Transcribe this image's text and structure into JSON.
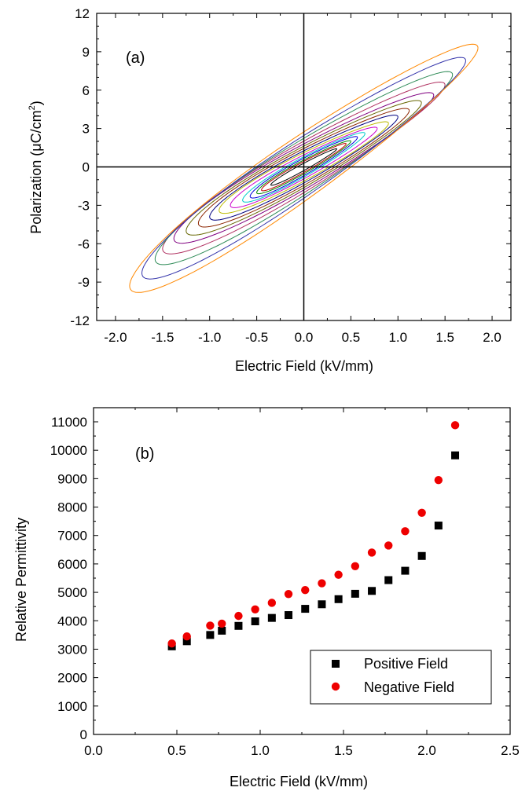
{
  "chart_data": [
    {
      "type": "line",
      "panel_label": "(a)",
      "xlabel": "Electric Field (kV/mm)",
      "ylabel_main": "Polarization (",
      "ylabel_mu": "μ",
      "ylabel_unit": "C/cm",
      "ylabel_sup": "2",
      "ylabel_close": ")",
      "xlim": [
        -2.2,
        2.2
      ],
      "ylim": [
        -12,
        12
      ],
      "xticks": [
        "-2.0",
        "-1.5",
        "-1.0",
        "-0.5",
        "0.0",
        "0.5",
        "1.0",
        "1.5",
        "2.0"
      ],
      "xtick_values": [
        -2.0,
        -1.5,
        -1.0,
        -0.5,
        0.0,
        0.5,
        1.0,
        1.5,
        2.0
      ],
      "yticks": [
        "-12",
        "-9",
        "-6",
        "-3",
        "0",
        "3",
        "6",
        "9",
        "12"
      ],
      "ytick_values": [
        -12,
        -9,
        -6,
        -3,
        0,
        3,
        6,
        9,
        12
      ],
      "reference_lines": {
        "x0": true,
        "y0": true
      },
      "series": [
        {
          "color": "#000000",
          "emax": 0.35,
          "pmax": 1.4,
          "half_width": 0.08
        },
        {
          "color": "#c00000",
          "emax": 0.45,
          "pmax": 1.8,
          "half_width": 0.12
        },
        {
          "color": "#008800",
          "emax": 0.5,
          "pmax": 2.0,
          "half_width": 0.15
        },
        {
          "color": "#0000dd",
          "emax": 0.57,
          "pmax": 2.3,
          "half_width": 0.19
        },
        {
          "color": "#00cccc",
          "emax": 0.65,
          "pmax": 2.6,
          "half_width": 0.22
        },
        {
          "color": "#cc00cc",
          "emax": 0.78,
          "pmax": 3.0,
          "half_width": 0.26
        },
        {
          "color": "#bbbb00",
          "emax": 0.9,
          "pmax": 3.4,
          "half_width": 0.31
        },
        {
          "color": "#000080",
          "emax": 1.0,
          "pmax": 3.9,
          "half_width": 0.35
        },
        {
          "color": "#8b2500",
          "emax": 1.12,
          "pmax": 4.4,
          "half_width": 0.4
        },
        {
          "color": "#666600",
          "emax": 1.25,
          "pmax": 5.0,
          "half_width": 0.45
        },
        {
          "color": "#800080",
          "emax": 1.38,
          "pmax": 5.6,
          "half_width": 0.5
        },
        {
          "color": "#b03060",
          "emax": 1.5,
          "pmax": 6.4,
          "half_width": 0.56
        },
        {
          "color": "#2e8b57",
          "emax": 1.58,
          "pmax": 7.2,
          "half_width": 0.62
        },
        {
          "color": "#3333aa",
          "emax": 1.72,
          "pmax": 8.3,
          "half_width": 0.68
        },
        {
          "color": "#ff8800",
          "emax": 1.85,
          "pmax": 9.3,
          "half_width": 0.76
        }
      ]
    },
    {
      "type": "scatter",
      "panel_label": "(b)",
      "xlabel": "Electric Field (kV/mm)",
      "ylabel": "Relative Permittivity",
      "xlim": [
        0.0,
        2.5
      ],
      "ylim": [
        0,
        11000
      ],
      "xticks": [
        "0.0",
        "0.5",
        "1.0",
        "1.5",
        "2.0",
        "2.5"
      ],
      "xtick_values": [
        0.0,
        0.5,
        1.0,
        1.5,
        2.0,
        2.5
      ],
      "yticks": [
        "0",
        "1000",
        "2000",
        "3000",
        "4000",
        "5000",
        "6000",
        "7000",
        "8000",
        "9000",
        "10000",
        "11000"
      ],
      "ytick_values": [
        0,
        1000,
        2000,
        3000,
        4000,
        5000,
        6000,
        7000,
        8000,
        9000,
        10000,
        11000
      ],
      "legend_position": "bottom-right",
      "series": [
        {
          "name": "Positive Field",
          "marker": "square",
          "color": "#000000",
          "x": [
            0.47,
            0.56,
            0.7,
            0.77,
            0.87,
            0.97,
            1.07,
            1.17,
            1.27,
            1.37,
            1.47,
            1.57,
            1.67,
            1.77,
            1.87,
            1.97,
            2.07,
            2.17
          ],
          "y": [
            3100,
            3280,
            3500,
            3650,
            3820,
            3980,
            4100,
            4200,
            4420,
            4580,
            4760,
            4950,
            5050,
            5430,
            5760,
            6280,
            7350,
            9820
          ]
        },
        {
          "name": "Negative Field",
          "marker": "circle",
          "color": "#ee0000",
          "x": [
            0.47,
            0.56,
            0.7,
            0.77,
            0.87,
            0.97,
            1.07,
            1.17,
            1.27,
            1.37,
            1.47,
            1.57,
            1.67,
            1.77,
            1.87,
            1.97,
            2.07,
            2.17
          ],
          "y": [
            3200,
            3450,
            3830,
            3900,
            4170,
            4400,
            4630,
            4940,
            5080,
            5320,
            5620,
            5920,
            6400,
            6650,
            7150,
            7800,
            8950,
            10880
          ]
        }
      ]
    }
  ]
}
